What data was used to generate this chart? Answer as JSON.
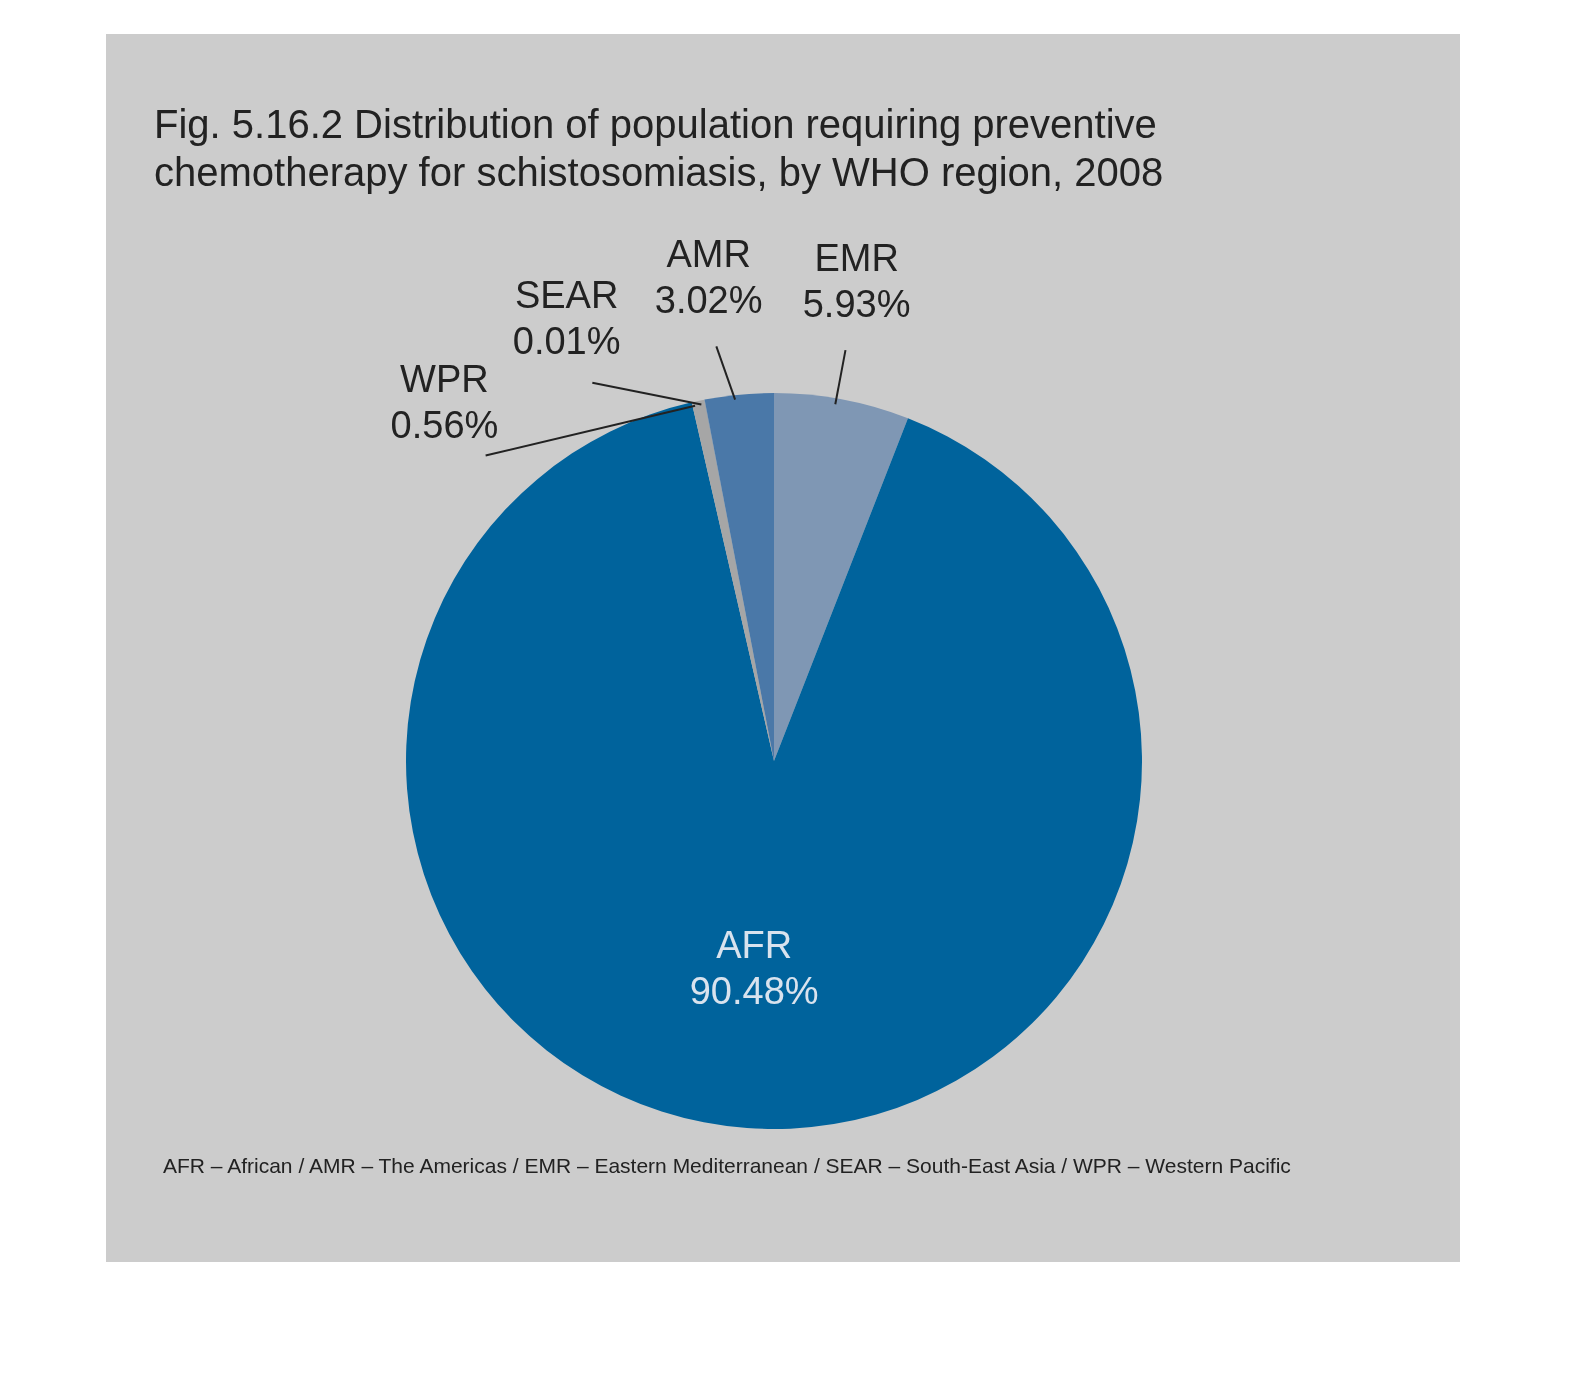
{
  "chart_data": {
    "type": "pie",
    "title": "Fig. 5.16.2 Distribution of population requiring preventive chemotherapy for schistosomiasis, by WHO region, 2008",
    "categories": [
      "EMR",
      "AFR",
      "WPR",
      "SEAR",
      "AMR"
    ],
    "values": [
      5.93,
      90.48,
      0.56,
      0.01,
      3.02
    ],
    "value_labels": [
      "5.93%",
      "90.48%",
      "0.56%",
      "0.01%",
      "3.02%"
    ],
    "colors": [
      "#7f97b4",
      "#00639c",
      "#a6a6a6",
      "#5a7fa8",
      "#4a78a8"
    ],
    "legend": false,
    "annotations": [
      "AFR – African / AMR – The Americas / EMR – Eastern Mediterranean / SEAR – South-East Asia / WPR – Western Pacific"
    ]
  }
}
